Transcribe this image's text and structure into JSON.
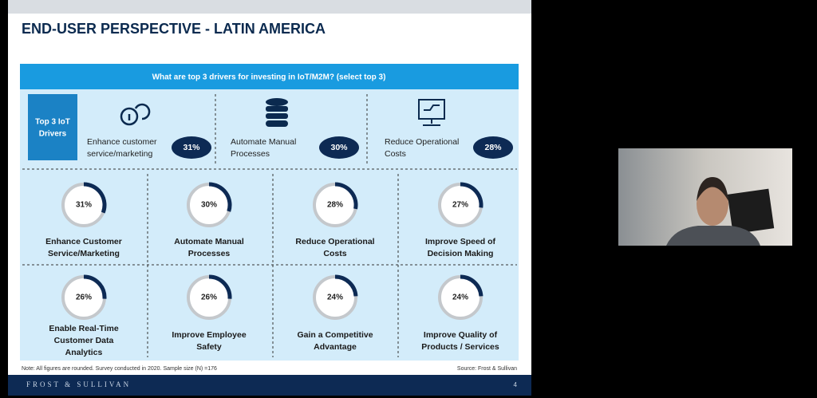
{
  "header": {
    "title": "END-USER PERSPECTIVE - LATIN AMERICA"
  },
  "question": "What are top 3 drivers for investing in IoT/M2M? (select top 3)",
  "top_drivers": {
    "label": [
      "Top 3 IoT",
      "Drivers"
    ],
    "items": [
      {
        "label": [
          "Enhance customer",
          "service/marketing"
        ],
        "share": "31%"
      },
      {
        "label": [
          "Automate Manual",
          "Processes"
        ],
        "share": "30%"
      },
      {
        "label": [
          "Reduce Operational",
          "Costs"
        ],
        "share": "28%"
      }
    ]
  },
  "drivers": [
    {
      "label": [
        "Enhance Customer",
        "Service/Marketing"
      ],
      "value": 31,
      "value_label": "31%"
    },
    {
      "label": [
        "Automate Manual",
        "Processes"
      ],
      "value": 30,
      "value_label": "30%"
    },
    {
      "label": [
        "Reduce Operational",
        "Costs"
      ],
      "value": 28,
      "value_label": "28%"
    },
    {
      "label": [
        "Improve Speed of",
        "Decision Making"
      ],
      "value": 27,
      "value_label": "27%"
    },
    {
      "label": [
        "Enable Real-Time",
        "Customer Data",
        "Analytics"
      ],
      "value": 26,
      "value_label": "26%"
    },
    {
      "label": [
        "Improve Employee",
        "Safety"
      ],
      "value": 26,
      "value_label": "26%"
    },
    {
      "label": [
        "Gain a Competitive",
        "Advantage"
      ],
      "value": 24,
      "value_label": "24%"
    },
    {
      "label": [
        "Improve Quality of",
        "Products / Services"
      ],
      "value": 24,
      "value_label": "24%"
    }
  ],
  "note": "Note: All figures are rounded. Survey conducted in 2020. Sample size (N) =176",
  "source": "Source: Frost & Sullivan",
  "brand": "FROST & SULLIVAN",
  "page": "4"
}
